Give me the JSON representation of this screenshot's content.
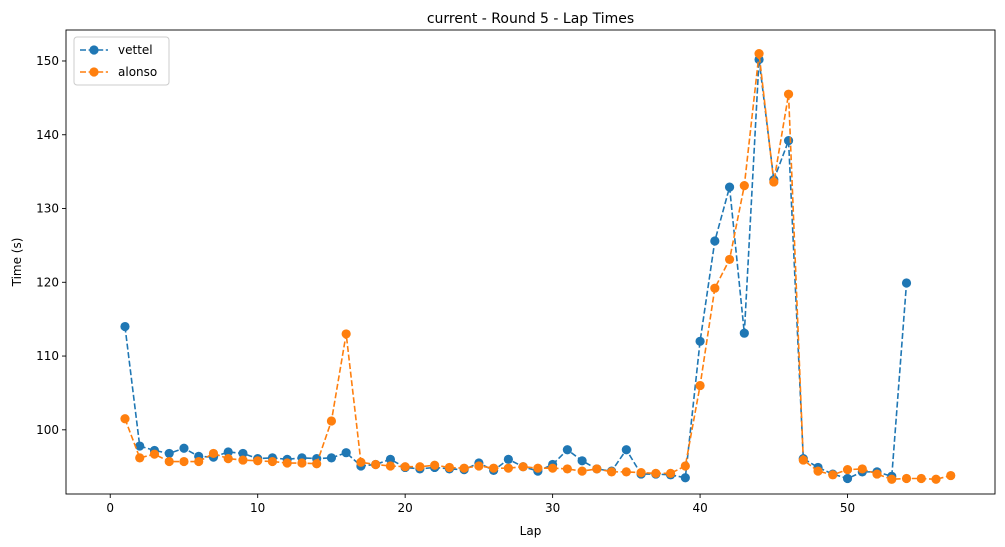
{
  "chart_data": {
    "type": "line",
    "title": "current - Round 5 - Lap Times",
    "xlabel": "Lap",
    "ylabel": "Time (s)",
    "xlim": [
      -3,
      60
    ],
    "ylim": [
      91.3,
      154.2
    ],
    "xticks": [
      0,
      10,
      20,
      30,
      40,
      50
    ],
    "yticks": [
      100,
      110,
      120,
      130,
      140,
      150
    ],
    "grid": false,
    "legend_position": "top-left",
    "series": [
      {
        "name": "vettel",
        "color": "#1f77b4",
        "x": [
          1,
          2,
          3,
          4,
          5,
          6,
          7,
          8,
          9,
          10,
          11,
          12,
          13,
          14,
          15,
          16,
          17,
          18,
          19,
          20,
          21,
          22,
          23,
          24,
          25,
          26,
          27,
          28,
          29,
          30,
          31,
          32,
          33,
          34,
          35,
          36,
          37,
          38,
          39,
          40,
          41,
          42,
          43,
          44,
          45,
          46,
          47,
          48,
          49,
          50,
          51,
          52,
          53,
          54
        ],
        "y": [
          114.0,
          97.8,
          97.2,
          96.8,
          97.5,
          96.4,
          96.3,
          97.0,
          96.8,
          96.1,
          96.2,
          96.0,
          96.2,
          96.1,
          96.2,
          96.9,
          95.1,
          95.3,
          96.0,
          94.9,
          94.7,
          94.9,
          94.7,
          94.6,
          95.5,
          94.5,
          96.0,
          95.0,
          94.4,
          95.3,
          97.3,
          95.8,
          94.7,
          94.4,
          97.3,
          94.0,
          94.0,
          93.9,
          93.5,
          112.0,
          125.6,
          132.9,
          113.1,
          150.2,
          133.9,
          139.2,
          96.1,
          94.9,
          94.0,
          93.4,
          94.3,
          94.3,
          93.7,
          119.9
        ]
      },
      {
        "name": "alonso",
        "color": "#ff7f0e",
        "x": [
          1,
          2,
          3,
          4,
          5,
          6,
          7,
          8,
          9,
          10,
          11,
          12,
          13,
          14,
          15,
          16,
          17,
          18,
          19,
          20,
          21,
          22,
          23,
          24,
          25,
          26,
          27,
          28,
          29,
          30,
          31,
          32,
          33,
          34,
          35,
          36,
          37,
          38,
          39,
          40,
          41,
          42,
          43,
          44,
          45,
          46,
          47,
          48,
          49,
          50,
          51,
          52,
          53,
          54,
          55,
          56,
          57
        ],
        "y": [
          101.5,
          96.2,
          96.7,
          95.7,
          95.7,
          95.7,
          96.8,
          96.1,
          95.9,
          95.8,
          95.7,
          95.5,
          95.5,
          95.4,
          101.2,
          113.0,
          95.6,
          95.3,
          95.1,
          95.0,
          95.0,
          95.2,
          94.9,
          94.8,
          95.1,
          94.8,
          94.8,
          95.0,
          94.8,
          94.8,
          94.7,
          94.4,
          94.7,
          94.3,
          94.3,
          94.2,
          94.1,
          94.1,
          95.1,
          106.0,
          119.2,
          123.1,
          133.1,
          151.0,
          133.6,
          145.5,
          95.9,
          94.4,
          93.9,
          94.6,
          94.7,
          94.0,
          93.3,
          93.4,
          93.4,
          93.3,
          93.8
        ]
      }
    ]
  }
}
